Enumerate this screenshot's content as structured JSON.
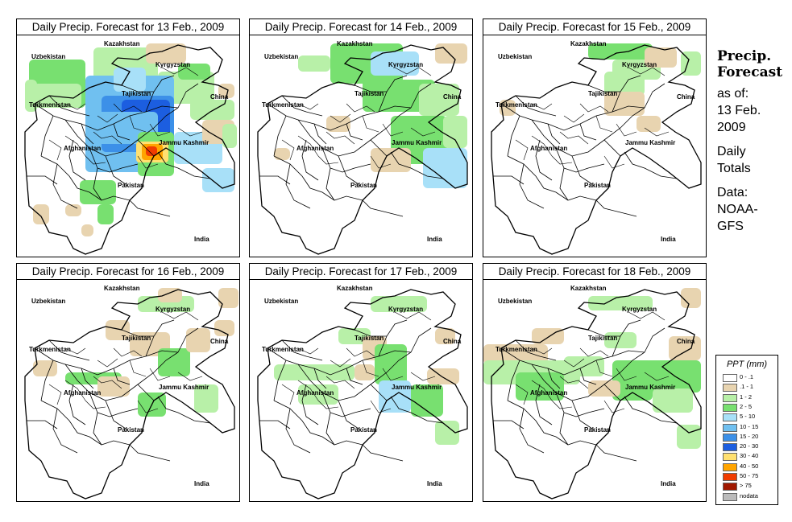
{
  "panel_titles": [
    "Daily Precip. Forecast for  13 Feb., 2009",
    "Daily Precip. Forecast for  14 Feb., 2009",
    "Daily Precip. Forecast for  15 Feb., 2009",
    "Daily Precip. Forecast for  16 Feb., 2009",
    "Daily Precip. Forecast for  17 Feb., 2009",
    "Daily Precip. Forecast for  18 Feb., 2009"
  ],
  "map_labels": {
    "kazakhstan": "Kazakhstan",
    "uzbekistan": "Uzbekistan",
    "kyrgyzstan": "Kyrgyzstan",
    "tajikistan": "Tajikistan",
    "turkmenistan": "Turkmenistan",
    "china": "China",
    "afghanistan": "Afghanistan",
    "jammu_kashmir": "Jammu Kashmir",
    "pakistan": "Pakistan",
    "india": "India"
  },
  "sidebar": {
    "heading_1": "Precip.",
    "heading_2": "Forecast",
    "line_1": "as of:",
    "line_2": "13 Feb.",
    "line_3": "2009",
    "line_4": "Daily",
    "line_5": "Totals",
    "line_6": "Data:",
    "line_7": "NOAA-",
    "line_8": "GFS"
  },
  "legend": {
    "title": "PPT (mm)",
    "items": [
      {
        "label": "0 - .1",
        "color": "#ffffff"
      },
      {
        "label": ".1 - 1",
        "color": "#e8d4b0"
      },
      {
        "label": "1 - 2",
        "color": "#b8f0a8"
      },
      {
        "label": "2 - 5",
        "color": "#78e070"
      },
      {
        "label": "5 - 10",
        "color": "#a8e0f8"
      },
      {
        "label": "10 - 15",
        "color": "#70c0f0"
      },
      {
        "label": "15 - 20",
        "color": "#3c90e8"
      },
      {
        "label": "20 - 30",
        "color": "#1c5ee0"
      },
      {
        "label": "30 - 40",
        "color": "#ffe070"
      },
      {
        "label": "40 - 50",
        "color": "#ffa400"
      },
      {
        "label": "50 - 75",
        "color": "#f03c00"
      },
      {
        "label": "> 75",
        "color": "#a01800"
      },
      {
        "label": "nodata",
        "color": "#bbbbbb"
      }
    ]
  }
}
